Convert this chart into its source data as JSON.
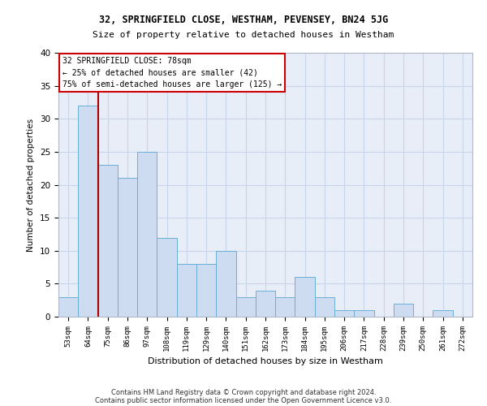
{
  "title1": "32, SPRINGFIELD CLOSE, WESTHAM, PEVENSEY, BN24 5JG",
  "title2": "Size of property relative to detached houses in Westham",
  "xlabel": "Distribution of detached houses by size in Westham",
  "ylabel": "Number of detached properties",
  "footnote1": "Contains HM Land Registry data © Crown copyright and database right 2024.",
  "footnote2": "Contains public sector information licensed under the Open Government Licence v3.0.",
  "categories": [
    "53sqm",
    "64sqm",
    "75sqm",
    "86sqm",
    "97sqm",
    "108sqm",
    "119sqm",
    "129sqm",
    "140sqm",
    "151sqm",
    "162sqm",
    "173sqm",
    "184sqm",
    "195sqm",
    "206sqm",
    "217sqm",
    "228sqm",
    "239sqm",
    "250sqm",
    "261sqm",
    "272sqm"
  ],
  "values": [
    3,
    32,
    23,
    21,
    25,
    12,
    8,
    8,
    10,
    3,
    4,
    3,
    6,
    3,
    1,
    1,
    0,
    2,
    0,
    1,
    0
  ],
  "bar_color": "#cddcf0",
  "bar_edge_color": "#6baed6",
  "grid_color": "#c8d4e8",
  "background_color": "#e8eef8",
  "annotation_box_text": "32 SPRINGFIELD CLOSE: 78sqm\n← 25% of detached houses are smaller (42)\n75% of semi-detached houses are larger (125) →",
  "annotation_box_color": "#ffffff",
  "annotation_box_edge": "#cc0000",
  "vline_color": "#aa0000",
  "vline_x_idx": 2.0,
  "ylim": [
    0,
    40
  ],
  "yticks": [
    0,
    5,
    10,
    15,
    20,
    25,
    30,
    35,
    40
  ]
}
